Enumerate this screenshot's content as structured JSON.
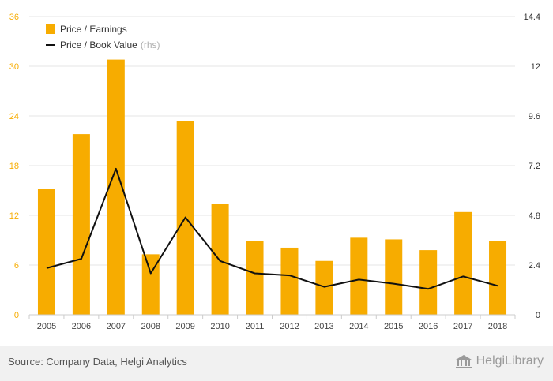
{
  "colors": {
    "bar": "#f7ac00",
    "line": "#111111",
    "grid": "#e6e6e6",
    "left_axis_text": "#f7ac00",
    "right_axis_text": "#333333"
  },
  "legend": {
    "bar_label": "Price / Earnings",
    "line_label": "Price / Book Value",
    "line_suffix": "(rhs)"
  },
  "footer": {
    "source": "Source: Company Data, Helgi Analytics",
    "brand": "HelgiLibrary",
    "brand_icon": "library-building-icon"
  },
  "chart_data": {
    "type": "bar",
    "categories": [
      "2005",
      "2006",
      "2007",
      "2008",
      "2009",
      "2010",
      "2011",
      "2012",
      "2013",
      "2014",
      "2015",
      "2016",
      "2017",
      "2018"
    ],
    "series": [
      {
        "name": "Price / Earnings",
        "type": "bar",
        "axis": "left",
        "values": [
          15.2,
          21.8,
          30.8,
          7.3,
          23.4,
          13.4,
          8.9,
          8.1,
          6.5,
          9.3,
          9.1,
          7.8,
          12.4,
          8.9
        ]
      },
      {
        "name": "Price / Book Value",
        "type": "line",
        "axis": "right",
        "values": [
          2.25,
          2.7,
          7.05,
          2.0,
          4.7,
          2.6,
          2.0,
          1.9,
          1.35,
          1.7,
          1.5,
          1.25,
          1.85,
          1.4
        ]
      }
    ],
    "y_left": {
      "lim": [
        0,
        36
      ],
      "ticks": [
        "0",
        "6",
        "12",
        "18",
        "24",
        "30",
        "36"
      ]
    },
    "y_right": {
      "lim": [
        0,
        14.4
      ],
      "ticks": [
        "0",
        "2.4",
        "4.8",
        "7.2",
        "9.6",
        "12",
        "14.4"
      ]
    },
    "grid": true,
    "legend_position": "top-left"
  }
}
